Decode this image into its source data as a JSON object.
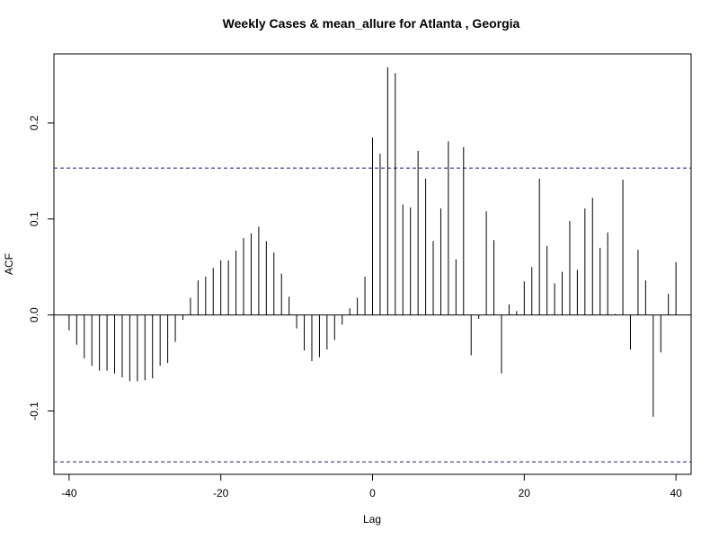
{
  "chart_data": {
    "type": "bar",
    "title": "Weekly Cases & mean_allure for Atlanta , Georgia",
    "xlabel": "Lag",
    "ylabel": "ACF",
    "xlim": [
      -42,
      42
    ],
    "ylim": [
      -0.166,
      0.272
    ],
    "x_ticks": [
      -40,
      -20,
      0,
      20,
      40
    ],
    "x_tick_labels": [
      "-40",
      "-20",
      "0",
      "20",
      "40"
    ],
    "y_ticks": [
      -0.1,
      0.0,
      0.1,
      0.2
    ],
    "y_tick_labels": [
      "-0.1",
      "0.0",
      "0.1",
      "0.2"
    ],
    "confidence_band": 0.153,
    "confidence_color": "#1a1aa8",
    "series": [
      {
        "lags": [
          -40,
          -39,
          -38,
          -37,
          -36,
          -35,
          -34,
          -33,
          -32,
          -31,
          -30,
          -29,
          -28,
          -27,
          -26,
          -25,
          -24,
          -23,
          -22,
          -21,
          -20,
          -19,
          -18,
          -17,
          -16,
          -15,
          -14,
          -13,
          -12,
          -11,
          -10,
          -9,
          -8,
          -7,
          -6,
          -5,
          -4,
          -3,
          -2,
          -1,
          0,
          1,
          2,
          3,
          4,
          5,
          6,
          7,
          8,
          9,
          10,
          11,
          12,
          13,
          14,
          15,
          16,
          17,
          18,
          19,
          20,
          21,
          22,
          23,
          24,
          25,
          26,
          27,
          28,
          29,
          30,
          31,
          32,
          33,
          34,
          35,
          36,
          37,
          38,
          39,
          40
        ],
        "values": [
          -0.016,
          -0.031,
          -0.045,
          -0.053,
          -0.058,
          -0.058,
          -0.061,
          -0.065,
          -0.069,
          -0.069,
          -0.068,
          -0.066,
          -0.053,
          -0.05,
          -0.028,
          -0.005,
          0.018,
          0.036,
          0.04,
          0.049,
          0.057,
          0.057,
          0.067,
          0.08,
          0.085,
          0.092,
          0.077,
          0.065,
          0.043,
          0.019,
          -0.014,
          -0.037,
          -0.048,
          -0.044,
          -0.036,
          -0.026,
          -0.01,
          0.007,
          0.018,
          0.04,
          0.185,
          0.168,
          0.258,
          0.252,
          0.115,
          0.112,
          0.171,
          0.142,
          0.077,
          0.111,
          0.181,
          0.058,
          0.175,
          -0.042,
          -0.004,
          0.108,
          0.078,
          -0.061,
          0.011,
          0.004,
          0.035,
          0.05,
          0.142,
          0.072,
          0.033,
          0.045,
          0.098,
          0.047,
          0.111,
          0.122,
          0.07,
          0.086,
          0.001,
          0.141,
          -0.036,
          0.068,
          0.036,
          -0.106,
          -0.039,
          0.022,
          0.055
        ]
      }
    ]
  }
}
